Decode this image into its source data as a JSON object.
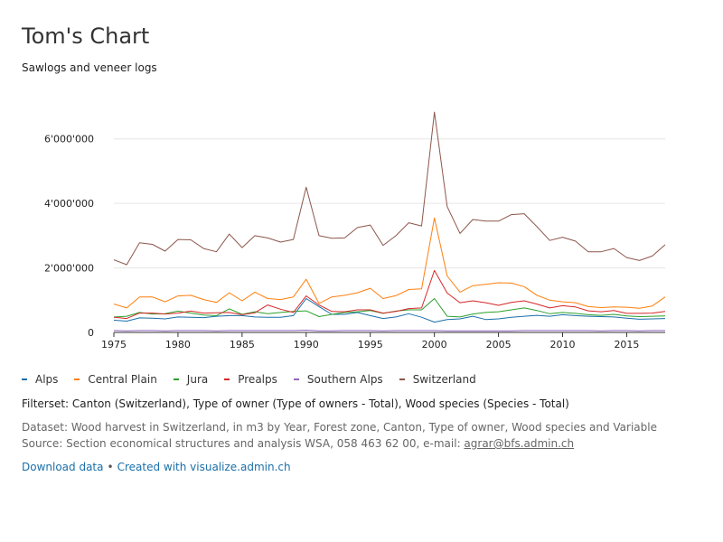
{
  "header": {
    "title": "Tom's Chart",
    "subtitle": "Sawlogs and veneer logs"
  },
  "legend_items": [
    {
      "label": "Alps",
      "color": "#1a6fa8"
    },
    {
      "label": "Central Plain",
      "color": "#ff7f0e"
    },
    {
      "label": "Jura",
      "color": "#2ca02c"
    },
    {
      "label": "Prealps",
      "color": "#d62728"
    },
    {
      "label": "Southern Alps",
      "color": "#9467bd"
    },
    {
      "label": "Switzerland",
      "color": "#8c564b"
    }
  ],
  "footer": {
    "filterset": "Filterset: Canton (Switzerland), Type of owner (Type of owners - Total), Wood species (Species - Total)",
    "dataset": "Dataset: Wood harvest in Switzerland, in m3 by Year, Forest zone, Canton, Type of owner, Wood species and Variable",
    "source_prefix": "Source: Section economical structures and analysis WSA, 058 463 62 00, e-mail: ",
    "source_email": "agrar@bfs.admin.ch",
    "download_label": "Download data",
    "separator": "•",
    "created_label": "Created with visualize.admin.ch"
  },
  "chart_data": {
    "type": "line",
    "x": [
      1975,
      1976,
      1977,
      1978,
      1979,
      1980,
      1981,
      1982,
      1983,
      1984,
      1985,
      1986,
      1987,
      1988,
      1989,
      1990,
      1991,
      1992,
      1993,
      1994,
      1995,
      1996,
      1997,
      1998,
      1999,
      2000,
      2001,
      2002,
      2003,
      2004,
      2005,
      2006,
      2007,
      2008,
      2009,
      2010,
      2011,
      2012,
      2013,
      2014,
      2015,
      2016,
      2017,
      2018
    ],
    "xlim": [
      1975,
      2018
    ],
    "x_ticks": [
      "1975",
      "1980",
      "1985",
      "1990",
      "1995",
      "2000",
      "2005",
      "2010",
      "2015"
    ],
    "ylim": [
      0,
      7000000
    ],
    "y_ticks": [
      "0",
      "2'000'000",
      "4'000'000",
      "6'000'000"
    ],
    "y_tick_values": [
      0,
      2000000,
      4000000,
      6000000
    ],
    "grid": "horizontal",
    "legend_position": "bottom",
    "series": [
      {
        "name": "Alps",
        "color": "#1a6fa8",
        "values": [
          380000,
          350000,
          450000,
          440000,
          420000,
          480000,
          470000,
          460000,
          500000,
          520000,
          520000,
          480000,
          470000,
          470000,
          520000,
          1050000,
          800000,
          560000,
          560000,
          620000,
          520000,
          430000,
          480000,
          580000,
          470000,
          320000,
          400000,
          420000,
          500000,
          400000,
          420000,
          470000,
          500000,
          530000,
          500000,
          550000,
          520000,
          500000,
          490000,
          480000,
          440000,
          410000,
          420000,
          430000
        ]
      },
      {
        "name": "Central Plain",
        "color": "#ff7f0e",
        "values": [
          880000,
          760000,
          1100000,
          1100000,
          950000,
          1130000,
          1150000,
          1020000,
          930000,
          1230000,
          980000,
          1250000,
          1050000,
          1020000,
          1100000,
          1650000,
          900000,
          1100000,
          1150000,
          1230000,
          1370000,
          1050000,
          1140000,
          1330000,
          1350000,
          3550000,
          1750000,
          1250000,
          1450000,
          1490000,
          1540000,
          1530000,
          1420000,
          1150000,
          1000000,
          950000,
          920000,
          800000,
          770000,
          790000,
          780000,
          750000,
          820000,
          1100000
        ]
      },
      {
        "name": "Jura",
        "color": "#2ca02c",
        "values": [
          480000,
          500000,
          620000,
          570000,
          580000,
          660000,
          600000,
          540000,
          520000,
          730000,
          560000,
          640000,
          580000,
          620000,
          650000,
          670000,
          490000,
          560000,
          620000,
          640000,
          680000,
          590000,
          660000,
          700000,
          700000,
          1050000,
          500000,
          480000,
          570000,
          620000,
          640000,
          700000,
          760000,
          680000,
          580000,
          620000,
          590000,
          550000,
          530000,
          560000,
          510000,
          490000,
          500000,
          510000
        ]
      },
      {
        "name": "Prealps",
        "color": "#d62728",
        "values": [
          470000,
          430000,
          600000,
          600000,
          570000,
          600000,
          660000,
          600000,
          610000,
          620000,
          550000,
          610000,
          850000,
          720000,
          620000,
          1130000,
          850000,
          650000,
          640000,
          700000,
          700000,
          600000,
          650000,
          740000,
          760000,
          1920000,
          1220000,
          920000,
          980000,
          920000,
          840000,
          930000,
          980000,
          880000,
          760000,
          830000,
          790000,
          670000,
          640000,
          680000,
          590000,
          590000,
          600000,
          650000
        ]
      },
      {
        "name": "Southern Alps",
        "color": "#9467bd",
        "values": [
          60000,
          50000,
          60000,
          60000,
          50000,
          60000,
          60000,
          60000,
          50000,
          60000,
          60000,
          60000,
          60000,
          60000,
          60000,
          70000,
          50000,
          50000,
          60000,
          60000,
          60000,
          50000,
          60000,
          60000,
          60000,
          60000,
          50000,
          50000,
          50000,
          50000,
          50000,
          50000,
          60000,
          60000,
          60000,
          60000,
          60000,
          60000,
          50000,
          60000,
          60000,
          50000,
          60000,
          60000
        ]
      },
      {
        "name": "Switzerland",
        "color": "#8c564b",
        "values": [
          2250000,
          2100000,
          2780000,
          2730000,
          2520000,
          2880000,
          2870000,
          2600000,
          2500000,
          3050000,
          2630000,
          3000000,
          2930000,
          2800000,
          2880000,
          4500000,
          3000000,
          2920000,
          2930000,
          3250000,
          3330000,
          2700000,
          3000000,
          3400000,
          3300000,
          6830000,
          3900000,
          3070000,
          3500000,
          3450000,
          3450000,
          3650000,
          3680000,
          3280000,
          2850000,
          2950000,
          2830000,
          2500000,
          2500000,
          2600000,
          2320000,
          2230000,
          2370000,
          2720000
        ]
      }
    ]
  }
}
